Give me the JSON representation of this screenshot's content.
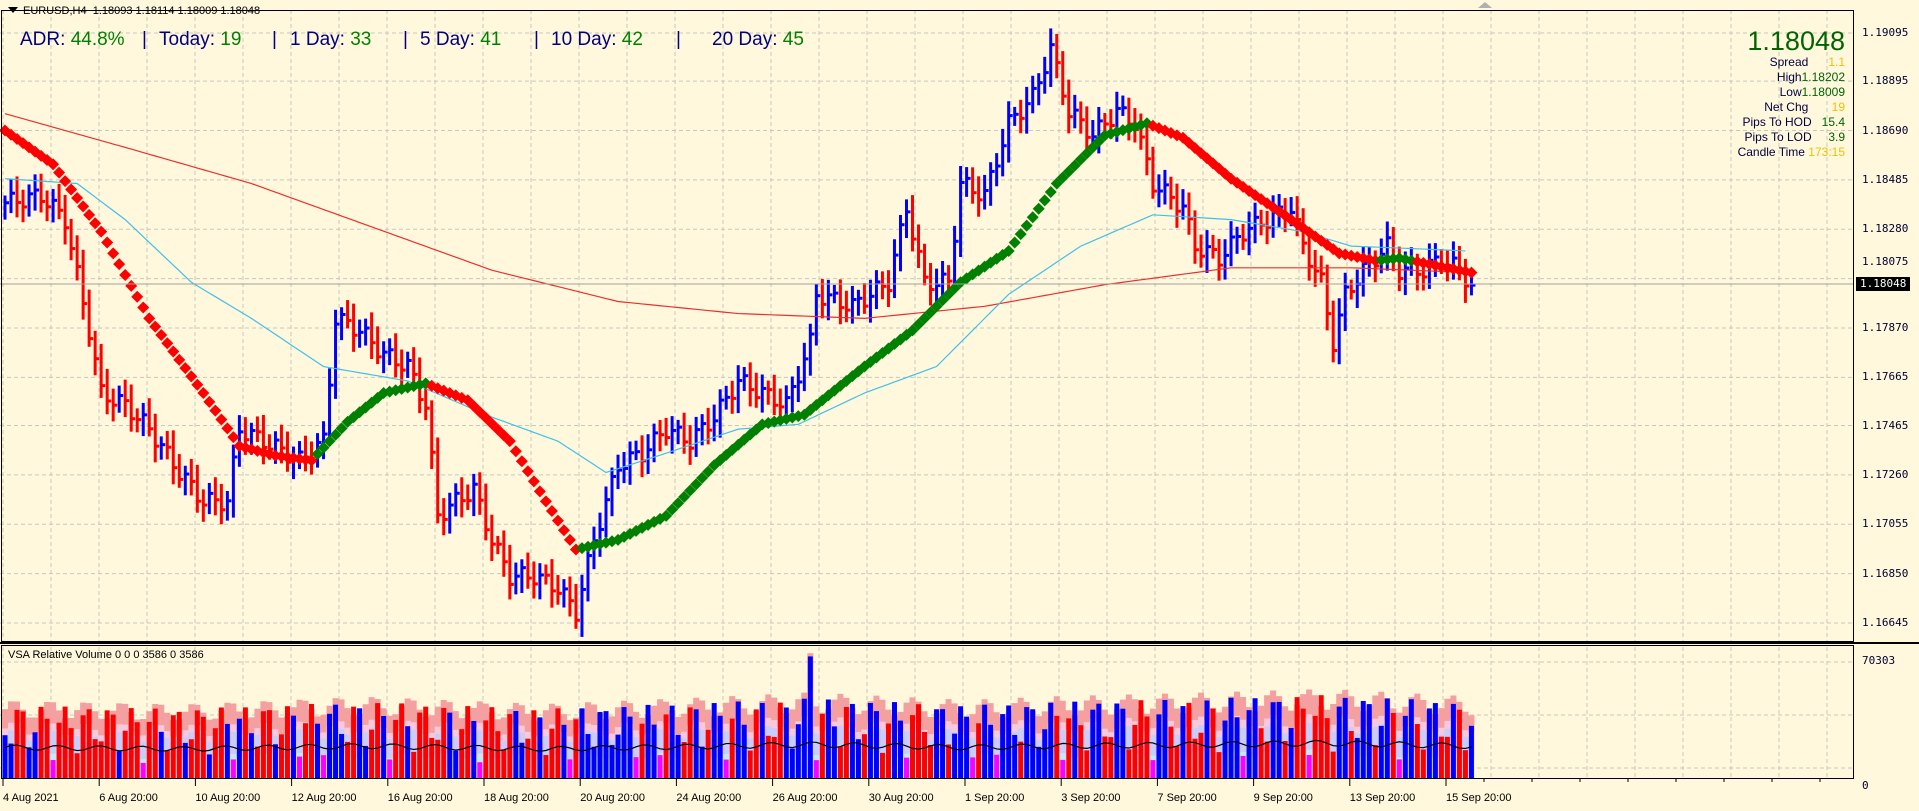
{
  "header": {
    "symbol": "EURUSD,H4",
    "open": "1.18093",
    "high": "1.18114",
    "low": "1.18009",
    "close": "1.18048"
  },
  "adr": {
    "items": [
      {
        "label": "ADR:",
        "value": "44.8%"
      },
      {
        "label": "Today:",
        "value": "19"
      },
      {
        "label": "1 Day:",
        "value": "33"
      },
      {
        "label": "5 Day:",
        "value": "41"
      },
      {
        "label": "10 Day:",
        "value": "42"
      },
      {
        "label": "20 Day:",
        "value": "45"
      }
    ],
    "separator": "|"
  },
  "info_panel": {
    "price": "1.18048",
    "rows": [
      {
        "label": "Spread",
        "value": "1.1",
        "color": "y"
      },
      {
        "label": "High",
        "value": "1.18202",
        "color": "g"
      },
      {
        "label": "Low",
        "value": "1.18009",
        "color": "g"
      },
      {
        "label": "Net Chg",
        "value": "19",
        "color": "y"
      },
      {
        "label": "Pips To HOD",
        "value": "15.4",
        "color": "g"
      },
      {
        "label": "Pips To LOD",
        "value": "3.9",
        "color": "g"
      },
      {
        "label": "Candle Time",
        "value": "173:15",
        "color": "y"
      }
    ]
  },
  "price_axis": [
    "1.19095",
    "1.18895",
    "1.18690",
    "1.18485",
    "1.18280",
    "1.18075",
    "1.17870",
    "1.17665",
    "1.17465",
    "1.17260",
    "1.17055",
    "1.16850",
    "1.16645"
  ],
  "current_price_label": "1.18048",
  "time_axis": [
    "4 Aug 2021",
    "6 Aug 20:00",
    "10 Aug 20:00",
    "12 Aug 20:00",
    "16 Aug 20:00",
    "18 Aug 20:00",
    "20 Aug 20:00",
    "24 Aug 20:00",
    "26 Aug 20:00",
    "30 Aug 20:00",
    "1 Sep 20:00",
    "3 Sep 20:00",
    "7 Sep 20:00",
    "9 Sep 20:00",
    "13 Sep 20:00",
    "15 Sep 20:00"
  ],
  "volume_panel": {
    "title": "VSA Relative Volume 0 0 0 3586 0 3586",
    "max_label": "70303",
    "min_label": "0"
  },
  "colors": {
    "up": "#0000ff",
    "down": "#ff0000",
    "trend_up": "#008000",
    "trend_down": "#ff0000",
    "ma_fast": "#40c0e8",
    "ma_slow": "#e83030",
    "background": "#fff8dc"
  },
  "chart_data": {
    "type": "ohlc",
    "symbol": "EURUSD",
    "timeframe": "H4",
    "ylim": [
      1.16645,
      1.19095
    ],
    "bars": 245,
    "close_path": [
      [
        0,
        1.1839
      ],
      [
        6,
        1.1842
      ],
      [
        10,
        1.1832
      ],
      [
        14,
        1.1786
      ],
      [
        16,
        1.176
      ],
      [
        20,
        1.1755
      ],
      [
        24,
        1.1745
      ],
      [
        29,
        1.1727
      ],
      [
        33,
        1.1715
      ],
      [
        37,
        1.1715
      ],
      [
        39,
        1.1745
      ],
      [
        43,
        1.174
      ],
      [
        49,
        1.1732
      ],
      [
        53,
        1.174
      ],
      [
        55,
        1.1791
      ],
      [
        59,
        1.1786
      ],
      [
        63,
        1.1776
      ],
      [
        67,
        1.1771
      ],
      [
        70,
        1.1755
      ],
      [
        72,
        1.1709
      ],
      [
        75,
        1.1715
      ],
      [
        78,
        1.172
      ],
      [
        81,
        1.1699
      ],
      [
        84,
        1.1684
      ],
      [
        88,
        1.1684
      ],
      [
        92,
        1.1679
      ],
      [
        95,
        1.1669
      ],
      [
        98,
        1.1699
      ],
      [
        102,
        1.173
      ],
      [
        106,
        1.1735
      ],
      [
        110,
        1.1745
      ],
      [
        114,
        1.174
      ],
      [
        118,
        1.175
      ],
      [
        122,
        1.1765
      ],
      [
        126,
        1.176
      ],
      [
        130,
        1.1755
      ],
      [
        134,
        1.1781
      ],
      [
        135,
        1.1801
      ],
      [
        141,
        1.1796
      ],
      [
        147,
        1.1806
      ],
      [
        150,
        1.1837
      ],
      [
        153,
        1.1806
      ],
      [
        157,
        1.1806
      ],
      [
        159,
        1.1847
      ],
      [
        163,
        1.1842
      ],
      [
        167,
        1.1872
      ],
      [
        171,
        1.1883
      ],
      [
        174,
        1.1903
      ],
      [
        177,
        1.1877
      ],
      [
        181,
        1.1867
      ],
      [
        185,
        1.1877
      ],
      [
        188,
        1.1872
      ],
      [
        191,
        1.1847
      ],
      [
        196,
        1.1837
      ],
      [
        198,
        1.1821
      ],
      [
        202,
        1.1816
      ],
      [
        206,
        1.1827
      ],
      [
        210,
        1.1832
      ],
      [
        214,
        1.1837
      ],
      [
        216,
        1.1821
      ],
      [
        219,
        1.1806
      ],
      [
        221,
        1.1781
      ],
      [
        223,
        1.1801
      ],
      [
        226,
        1.1811
      ],
      [
        230,
        1.1821
      ],
      [
        232,
        1.1811
      ],
      [
        236,
        1.1811
      ],
      [
        239,
        1.1816
      ],
      [
        242,
        1.1811
      ],
      [
        244,
        1.18048
      ]
    ],
    "trend_line": [
      [
        0,
        1.1869
      ],
      [
        8,
        1.1855
      ],
      [
        16,
        1.1827
      ],
      [
        24,
        1.1791
      ],
      [
        33,
        1.176
      ],
      [
        39,
        1.1738
      ],
      [
        45,
        1.1734
      ],
      [
        51,
        1.1732
      ],
      [
        57,
        1.1748
      ],
      [
        63,
        1.176
      ],
      [
        70,
        1.1764
      ],
      [
        77,
        1.1757
      ],
      [
        84,
        1.174
      ],
      [
        90,
        1.1715
      ],
      [
        95,
        1.1695
      ],
      [
        102,
        1.1699
      ],
      [
        110,
        1.1709
      ],
      [
        118,
        1.173
      ],
      [
        126,
        1.1747
      ],
      [
        133,
        1.1751
      ],
      [
        143,
        1.1771
      ],
      [
        151,
        1.1786
      ],
      [
        159,
        1.1806
      ],
      [
        167,
        1.1819
      ],
      [
        175,
        1.1847
      ],
      [
        183,
        1.1867
      ],
      [
        190,
        1.1872
      ],
      [
        196,
        1.1866
      ],
      [
        204,
        1.1849
      ],
      [
        214,
        1.1832
      ],
      [
        222,
        1.1818
      ],
      [
        228,
        1.1815
      ],
      [
        232,
        1.1816
      ],
      [
        244,
        1.181
      ]
    ],
    "trend_segments": [
      [
        0,
        51,
        "down"
      ],
      [
        51,
        70,
        "up"
      ],
      [
        70,
        95,
        "down"
      ],
      [
        95,
        190,
        "up"
      ],
      [
        190,
        228,
        "down"
      ],
      [
        228,
        234,
        "up"
      ],
      [
        234,
        244,
        "down"
      ]
    ],
    "ma_slow": [
      [
        0,
        1.1876
      ],
      [
        20,
        1.1862
      ],
      [
        41,
        1.1847
      ],
      [
        61,
        1.1829
      ],
      [
        81,
        1.1811
      ],
      [
        102,
        1.1798
      ],
      [
        122,
        1.1793
      ],
      [
        143,
        1.1791
      ],
      [
        163,
        1.1796
      ],
      [
        183,
        1.1805
      ],
      [
        204,
        1.1812
      ],
      [
        224,
        1.1812
      ],
      [
        244,
        1.181
      ]
    ],
    "ma_fast": [
      [
        0,
        1.1849
      ],
      [
        12,
        1.1847
      ],
      [
        20,
        1.1832
      ],
      [
        31,
        1.1806
      ],
      [
        41,
        1.1791
      ],
      [
        53,
        1.1771
      ],
      [
        67,
        1.1765
      ],
      [
        81,
        1.175
      ],
      [
        92,
        1.174
      ],
      [
        100,
        1.1727
      ],
      [
        110,
        1.1735
      ],
      [
        122,
        1.1745
      ],
      [
        132,
        1.1747
      ],
      [
        143,
        1.176
      ],
      [
        155,
        1.1771
      ],
      [
        167,
        1.1801
      ],
      [
        179,
        1.1821
      ],
      [
        191,
        1.1834
      ],
      [
        204,
        1.1832
      ],
      [
        216,
        1.1827
      ],
      [
        224,
        1.1821
      ],
      [
        234,
        1.182
      ],
      [
        243,
        1.1819
      ]
    ],
    "volume_ylim": [
      0,
      70303
    ],
    "volume_band_top": [
      [
        0,
        42000
      ],
      [
        30,
        40000
      ],
      [
        60,
        44000
      ],
      [
        90,
        40000
      ],
      [
        120,
        44000
      ],
      [
        133,
        46000
      ],
      [
        134,
        70303
      ],
      [
        135,
        46000
      ],
      [
        160,
        42000
      ],
      [
        175,
        44000
      ],
      [
        200,
        46000
      ],
      [
        220,
        48000
      ],
      [
        244,
        44000
      ]
    ]
  }
}
